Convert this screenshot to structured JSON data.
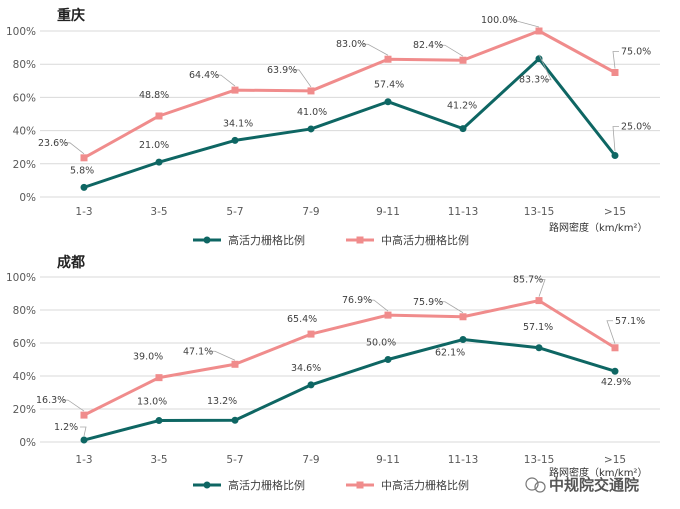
{
  "watermark": "中规院交通院",
  "chart_data": [
    {
      "type": "line",
      "title": "重庆",
      "categories": [
        "1-3",
        "3-5",
        "5-7",
        "7-9",
        "9-11",
        "11-13",
        "13-15",
        ">15"
      ],
      "xlabel": "路网密度（km/km²）",
      "ylabel": "",
      "ylim": [
        0,
        100
      ],
      "yticks": [
        "0%",
        "20%",
        "40%",
        "60%",
        "80%",
        "100%"
      ],
      "grid": true,
      "legend_position": "bottom",
      "series": [
        {
          "name": "高活力栅格比例",
          "color": "#0e6663",
          "values": [
            5.8,
            21.0,
            34.1,
            41.0,
            57.4,
            41.2,
            83.3,
            25.0
          ],
          "labels": [
            "5.8%",
            "21.0%",
            "34.1%",
            "41.0%",
            "57.4%",
            "41.2%",
            "83.3%",
            "25.0%"
          ]
        },
        {
          "name": "中高活力栅格比例",
          "color": "#f08c8c",
          "values": [
            23.6,
            48.8,
            64.4,
            63.9,
            83.0,
            82.4,
            100.0,
            75.0
          ],
          "labels": [
            "23.6%",
            "48.8%",
            "64.4%",
            "63.9%",
            "83.0%",
            "82.4%",
            "100.0%",
            "75.0%"
          ]
        }
      ]
    },
    {
      "type": "line",
      "title": "成都",
      "categories": [
        "1-3",
        "3-5",
        "5-7",
        "7-9",
        "9-11",
        "11-13",
        "13-15",
        ">15"
      ],
      "xlabel": "路网密度（km/km²）",
      "ylabel": "",
      "ylim": [
        0,
        100
      ],
      "yticks": [
        "0%",
        "20%",
        "40%",
        "60%",
        "80%",
        "100%"
      ],
      "grid": true,
      "legend_position": "bottom",
      "series": [
        {
          "name": "高活力栅格比例",
          "color": "#0e6663",
          "values": [
            1.2,
            13.0,
            13.2,
            34.6,
            50.0,
            62.1,
            57.1,
            42.9
          ],
          "labels": [
            "1.2%",
            "13.0%",
            "13.2%",
            "34.6%",
            "50.0%",
            "62.1%",
            "57.1%",
            "42.9%"
          ]
        },
        {
          "name": "中高活力栅格比例",
          "color": "#f08c8c",
          "values": [
            16.3,
            39.0,
            47.1,
            65.4,
            76.9,
            75.9,
            85.7,
            57.1
          ],
          "labels": [
            "16.3%",
            "39.0%",
            "47.1%",
            "65.4%",
            "76.9%",
            "75.9%",
            "85.7%",
            "57.1%"
          ]
        }
      ]
    }
  ]
}
